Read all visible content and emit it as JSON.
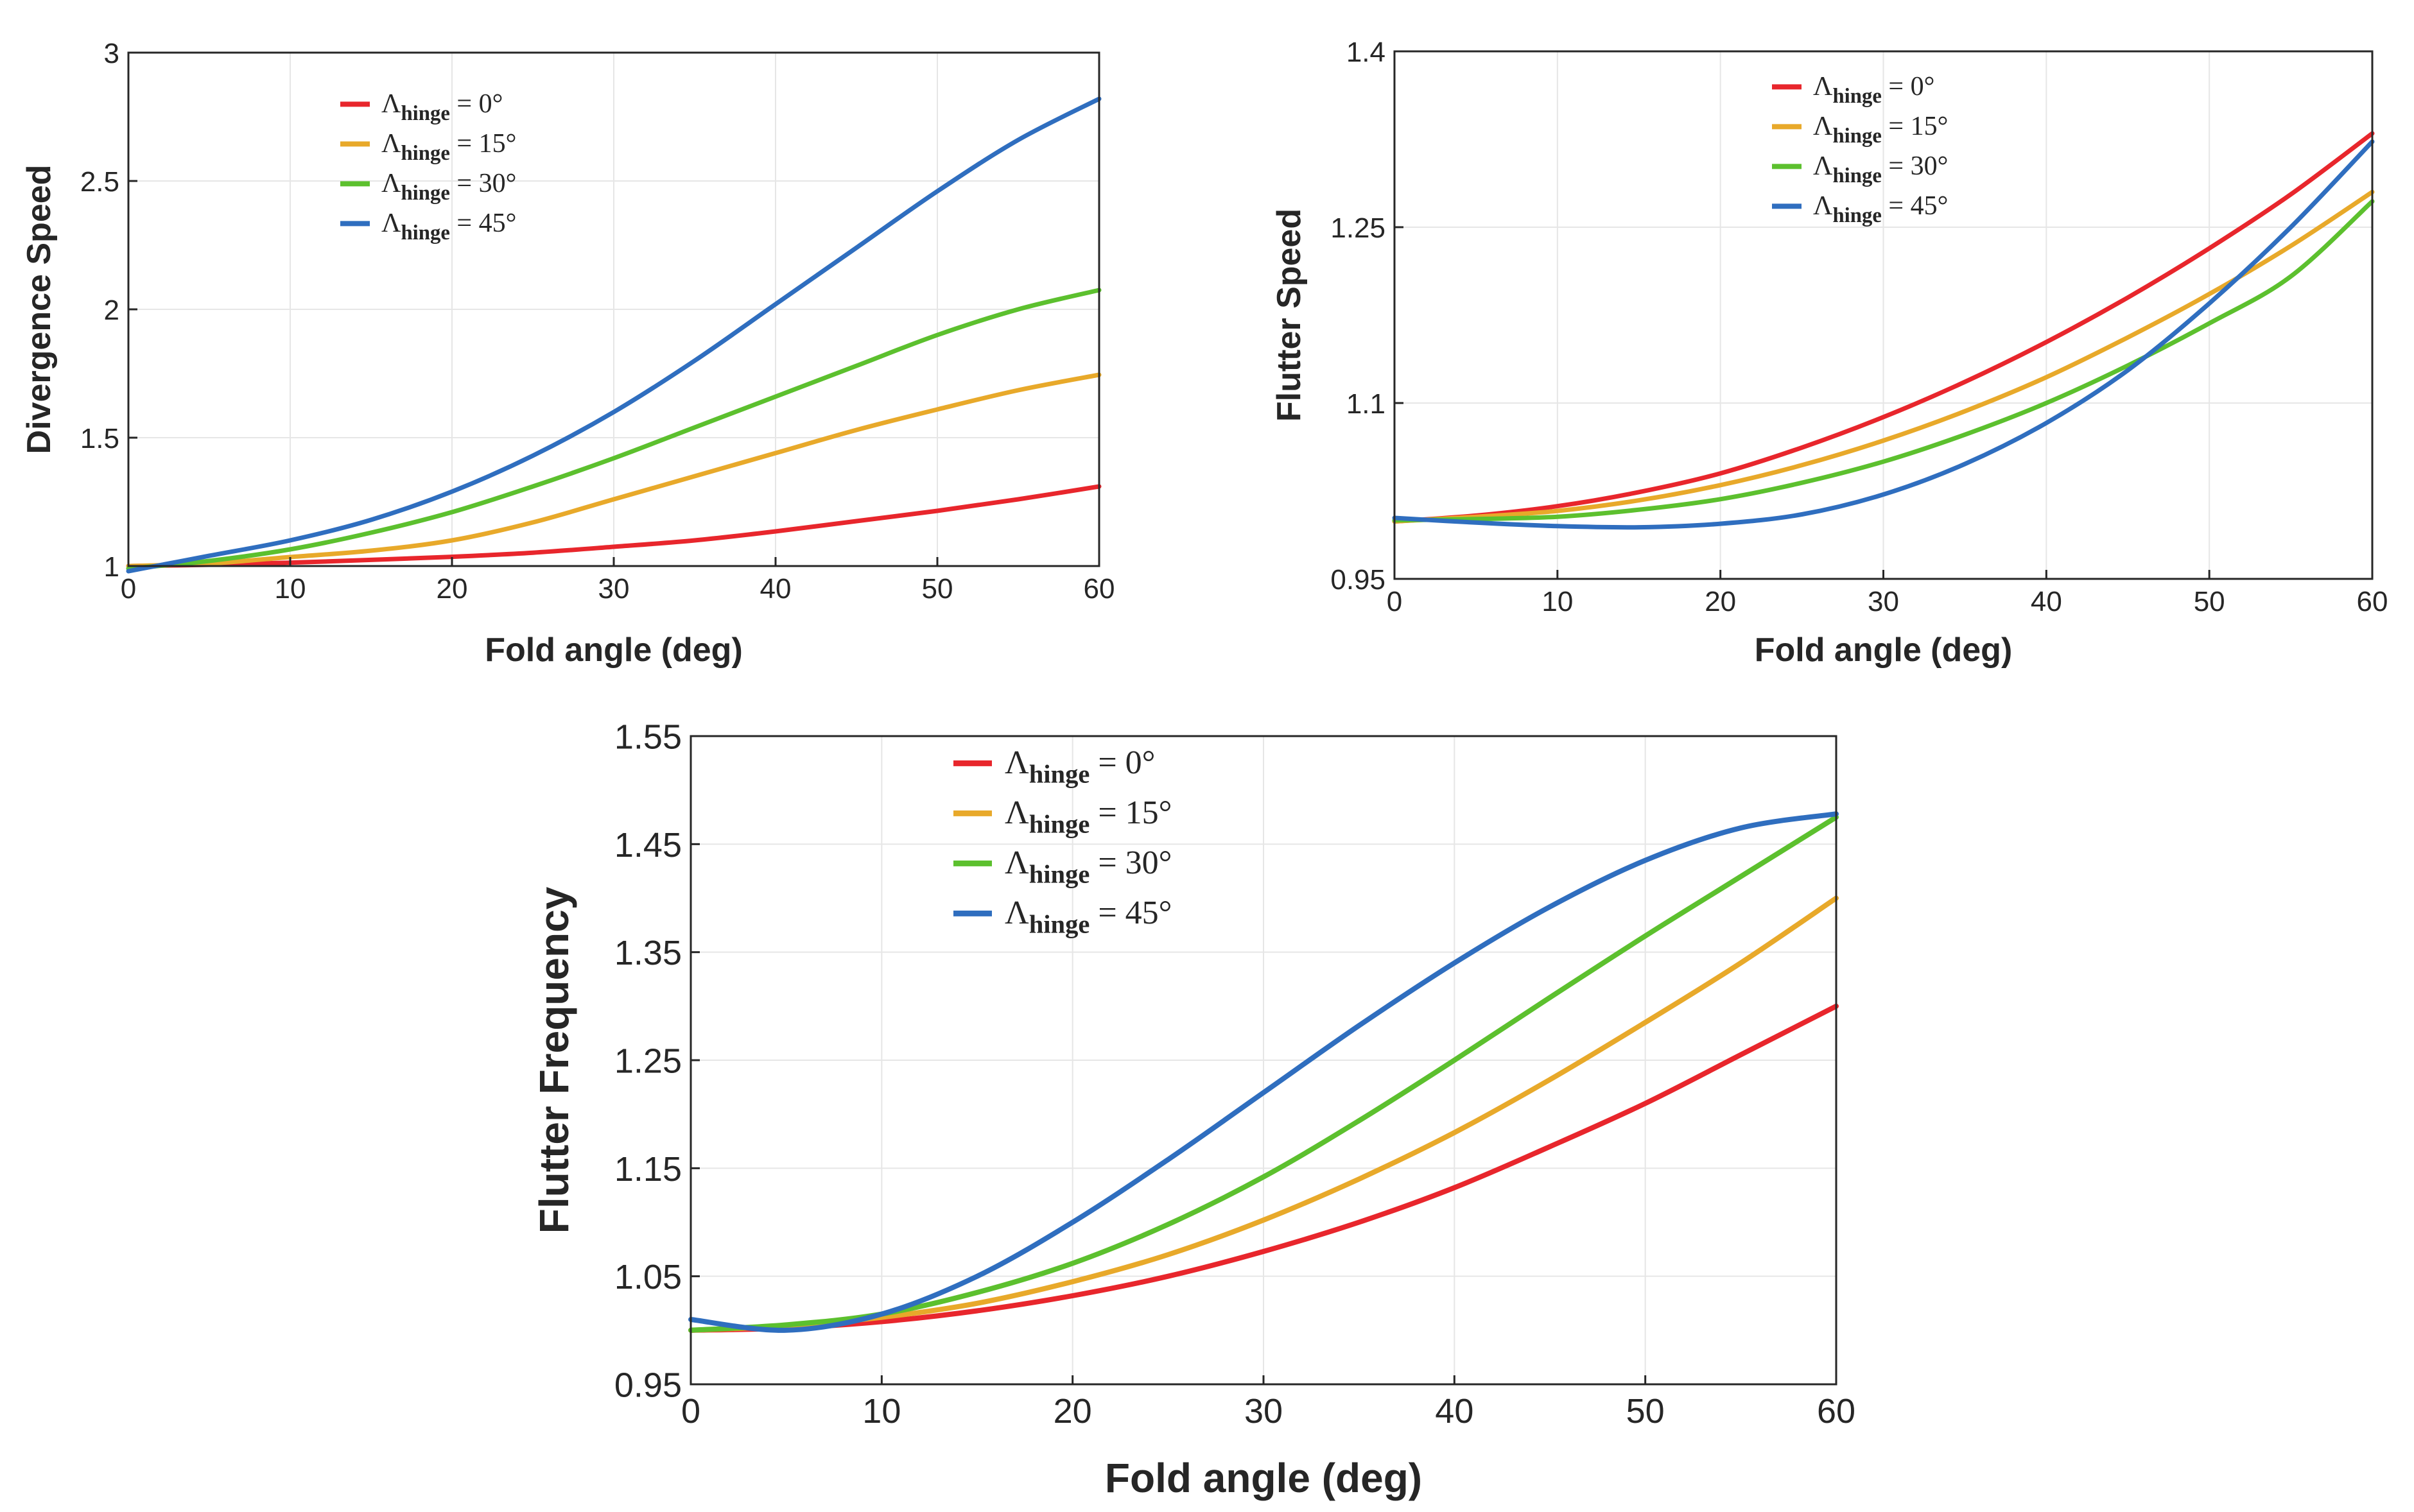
{
  "chart_data": [
    {
      "type": "line",
      "id": "divergence",
      "xlabel": "Fold angle (deg)",
      "ylabel": "Divergence Speed",
      "xlim": [
        0,
        60
      ],
      "ylim": [
        1,
        3
      ],
      "xticks": [
        "0",
        "10",
        "20",
        "30",
        "40",
        "50",
        "60"
      ],
      "yticks": [
        "1",
        "1.5",
        "2",
        "2.5",
        "3"
      ],
      "legend_position": "top-left",
      "x": [
        0,
        5,
        10,
        15,
        20,
        25,
        30,
        35,
        40,
        45,
        50,
        55,
        60
      ],
      "series": [
        {
          "name": "Λhinge = 0°",
          "symbol": "Λ",
          "sub": "hinge",
          "rest": " = 0°",
          "color": "#e8262c",
          "values": [
            1.0,
            1.005,
            1.013,
            1.024,
            1.036,
            1.052,
            1.075,
            1.1,
            1.135,
            1.175,
            1.215,
            1.26,
            1.31
          ]
        },
        {
          "name": "Λhinge = 15°",
          "symbol": "Λ",
          "sub": "hinge",
          "rest": " = 15°",
          "color": "#e8a92a",
          "values": [
            1.0,
            1.01,
            1.035,
            1.06,
            1.1,
            1.17,
            1.26,
            1.35,
            1.44,
            1.53,
            1.61,
            1.685,
            1.745
          ]
        },
        {
          "name": "Λhinge = 30°",
          "symbol": "Λ",
          "sub": "hinge",
          "rest": " = 30°",
          "color": "#5cc02e",
          "values": [
            0.99,
            1.02,
            1.065,
            1.13,
            1.21,
            1.31,
            1.42,
            1.54,
            1.66,
            1.78,
            1.9,
            2.0,
            2.075
          ]
        },
        {
          "name": "Λhinge = 45°",
          "symbol": "Λ",
          "sub": "hinge",
          "rest": " = 45°",
          "color": "#2f6ebf",
          "values": [
            0.98,
            1.04,
            1.1,
            1.18,
            1.29,
            1.43,
            1.6,
            1.8,
            2.02,
            2.24,
            2.46,
            2.66,
            2.82
          ]
        }
      ]
    },
    {
      "type": "line",
      "id": "flutter-speed",
      "xlabel": "Fold angle (deg)",
      "ylabel": "Flutter Speed",
      "xlim": [
        0,
        60
      ],
      "ylim": [
        0.95,
        1.4
      ],
      "xticks": [
        "0",
        "10",
        "20",
        "30",
        "40",
        "50",
        "60"
      ],
      "yticks": [
        "0.95",
        "1.1",
        "1.25",
        "1.4"
      ],
      "legend_position": "top-right",
      "x": [
        0,
        5,
        10,
        15,
        20,
        25,
        30,
        35,
        40,
        45,
        50,
        55,
        60
      ],
      "series": [
        {
          "name": "Λhinge = 0°",
          "symbol": "Λ",
          "sub": "hinge",
          "rest": " = 0°",
          "color": "#e8262c",
          "values": [
            0.999,
            1.004,
            1.012,
            1.024,
            1.04,
            1.062,
            1.088,
            1.118,
            1.152,
            1.19,
            1.232,
            1.278,
            1.33
          ]
        },
        {
          "name": "Λhinge = 15°",
          "symbol": "Λ",
          "sub": "hinge",
          "rest": " = 15°",
          "color": "#e8a92a",
          "values": [
            0.999,
            1.003,
            1.008,
            1.017,
            1.03,
            1.047,
            1.068,
            1.093,
            1.122,
            1.156,
            1.193,
            1.234,
            1.28
          ]
        },
        {
          "name": "Λhinge = 30°",
          "symbol": "Λ",
          "sub": "hinge",
          "rest": " = 30°",
          "color": "#5cc02e",
          "values": [
            1.0,
            1.001,
            1.003,
            1.009,
            1.018,
            1.032,
            1.05,
            1.073,
            1.1,
            1.132,
            1.168,
            1.208,
            1.272
          ]
        },
        {
          "name": "Λhinge = 45°",
          "symbol": "Λ",
          "sub": "hinge",
          "rest": " = 45°",
          "color": "#2f6ebf",
          "values": [
            1.002,
            0.998,
            0.995,
            0.994,
            0.997,
            1.005,
            1.022,
            1.048,
            1.083,
            1.128,
            1.185,
            1.25,
            1.323
          ]
        }
      ]
    },
    {
      "type": "line",
      "id": "flutter-frequency",
      "xlabel": "Fold angle (deg)",
      "ylabel": "Flutter Frequency",
      "xlim": [
        0,
        60
      ],
      "ylim": [
        0.95,
        1.55
      ],
      "xticks": [
        "0",
        "10",
        "20",
        "30",
        "40",
        "50",
        "60"
      ],
      "yticks": [
        "0.95",
        "1.05",
        "1.15",
        "1.25",
        "1.35",
        "1.45",
        "1.55"
      ],
      "legend_position": "top-left",
      "x": [
        0,
        5,
        10,
        15,
        20,
        25,
        30,
        35,
        40,
        45,
        50,
        55,
        60
      ],
      "series": [
        {
          "name": "Λhinge = 0°",
          "symbol": "Λ",
          "sub": "hinge",
          "rest": " = 0°",
          "color": "#e8262c",
          "values": [
            1.0,
            1.002,
            1.008,
            1.018,
            1.032,
            1.05,
            1.073,
            1.1,
            1.132,
            1.17,
            1.21,
            1.255,
            1.3
          ]
        },
        {
          "name": "Λhinge = 15°",
          "symbol": "Λ",
          "sub": "hinge",
          "rest": " = 15°",
          "color": "#e8a92a",
          "values": [
            1.0,
            1.004,
            1.012,
            1.025,
            1.045,
            1.07,
            1.102,
            1.14,
            1.183,
            1.232,
            1.285,
            1.34,
            1.4
          ]
        },
        {
          "name": "Λhinge = 30°",
          "symbol": "Λ",
          "sub": "hinge",
          "rest": " = 30°",
          "color": "#5cc02e",
          "values": [
            1.0,
            1.005,
            1.015,
            1.035,
            1.062,
            1.098,
            1.142,
            1.194,
            1.25,
            1.308,
            1.365,
            1.42,
            1.475
          ]
        },
        {
          "name": "Λhinge = 45°",
          "symbol": "Λ",
          "sub": "hinge",
          "rest": " = 45°",
          "color": "#2f6ebf",
          "values": [
            1.01,
            1.0,
            1.015,
            1.05,
            1.1,
            1.158,
            1.22,
            1.282,
            1.34,
            1.392,
            1.435,
            1.465,
            1.478
          ]
        }
      ]
    }
  ]
}
